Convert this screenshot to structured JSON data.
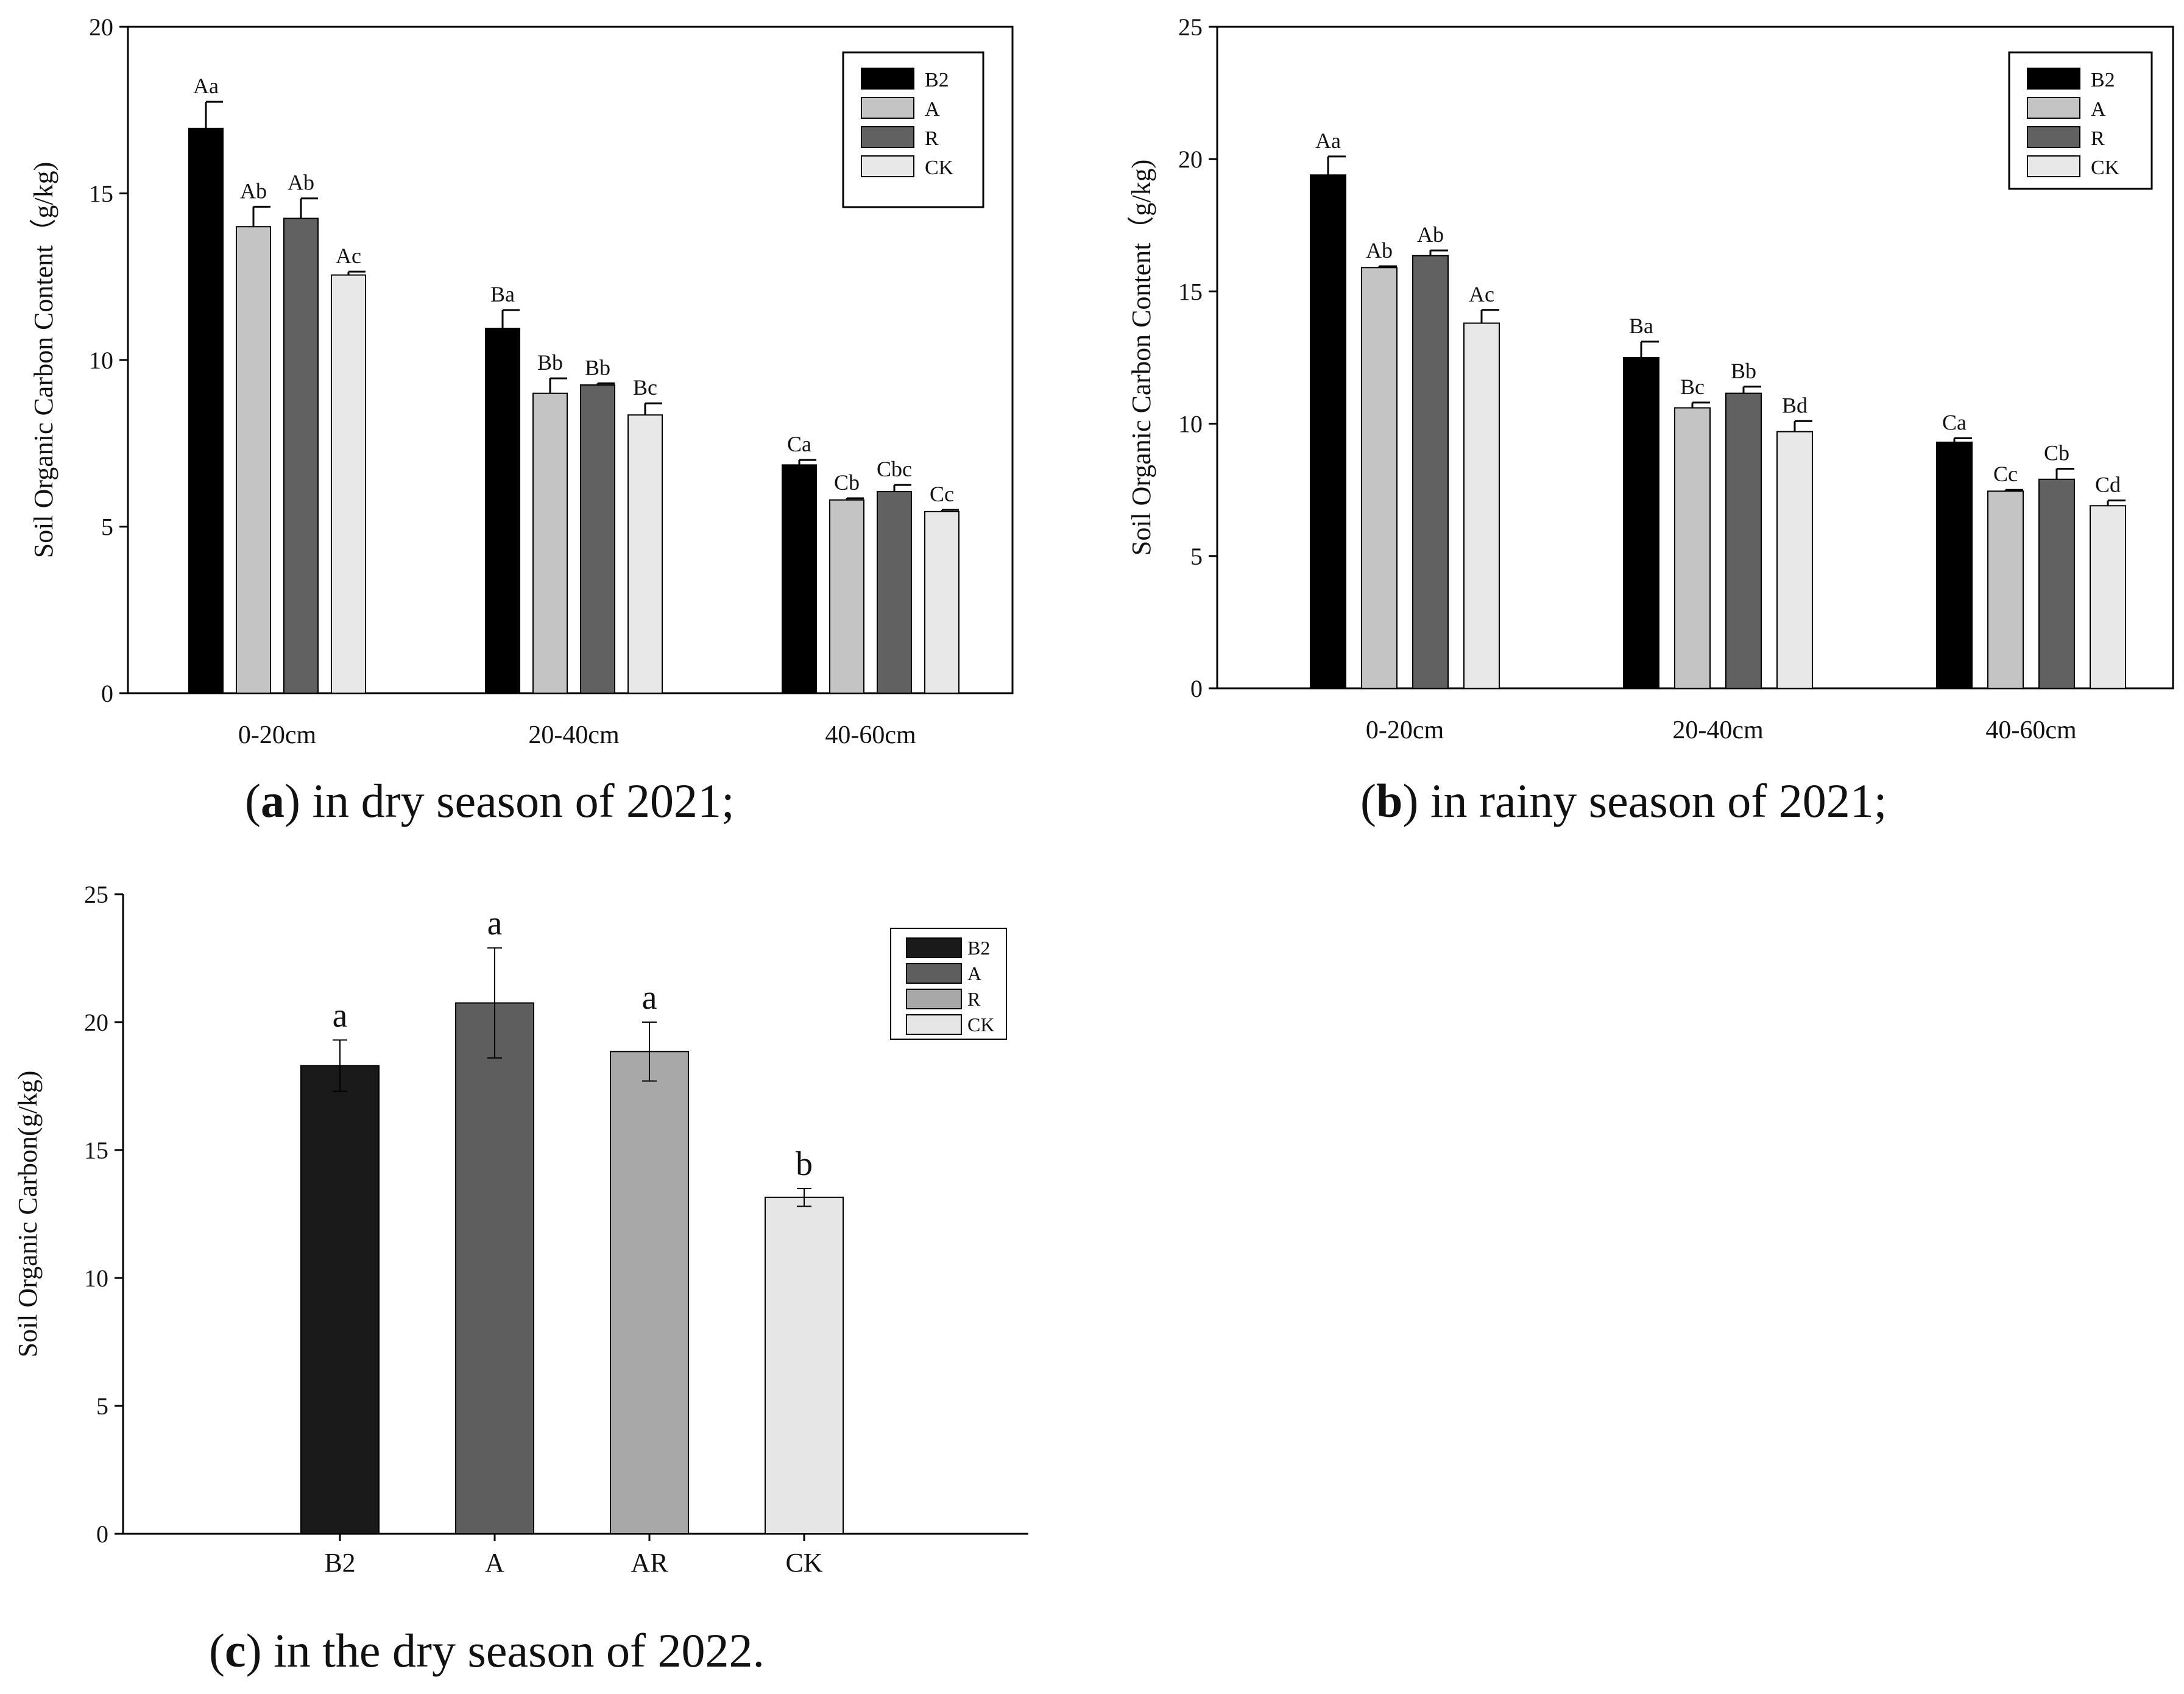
{
  "chart_data": [
    {
      "type": "bar",
      "title": "",
      "ylabel": "Soil Organic Carbon Content（g/kg)",
      "xlabel": "",
      "ylim": [
        0,
        20
      ],
      "yticks": [
        0,
        5,
        10,
        15,
        20
      ],
      "categories": [
        "0-20cm",
        "20-40cm",
        "40-60cm"
      ],
      "legend_position": "top-right",
      "series": [
        {
          "name": "B2",
          "color": "#000000",
          "values": [
            16.95,
            10.95,
            6.85
          ],
          "errors": [
            0.8,
            0.55,
            0.15
          ],
          "letters": [
            "Aa",
            "Ba",
            "Ca"
          ]
        },
        {
          "name": "A",
          "color": "#c4c4c4",
          "values": [
            14.0,
            9.0,
            5.8
          ],
          "errors": [
            0.6,
            0.45,
            0.05
          ],
          "letters": [
            "Ab",
            "Bb",
            "Cb"
          ]
        },
        {
          "name": "R",
          "color": "#616161",
          "values": [
            14.25,
            9.25,
            6.05
          ],
          "errors": [
            0.6,
            0.05,
            0.2
          ],
          "letters": [
            "Ab",
            "Bb",
            "Cbc"
          ]
        },
        {
          "name": "CK",
          "color": "#e8e8e8",
          "values": [
            12.55,
            8.35,
            5.45
          ],
          "errors": [
            0.1,
            0.35,
            0.05
          ],
          "letters": [
            "Ac",
            "Bc",
            "Cc"
          ]
        }
      ],
      "caption_letter": "a",
      "caption_text": " in dry season of 2021;"
    },
    {
      "type": "bar",
      "title": "",
      "ylabel": "Soil Organic Carbon Content（g/kg)",
      "xlabel": "",
      "ylim": [
        0,
        25
      ],
      "yticks": [
        0,
        5,
        10,
        15,
        20,
        25
      ],
      "categories": [
        "0-20cm",
        "20-40cm",
        "40-60cm"
      ],
      "legend_position": "top-right",
      "series": [
        {
          "name": "B2",
          "color": "#000000",
          "values": [
            19.4,
            12.5,
            9.3
          ],
          "errors": [
            0.7,
            0.6,
            0.15
          ],
          "letters": [
            "Aa",
            "Ba",
            "Ca"
          ]
        },
        {
          "name": "A",
          "color": "#c4c4c4",
          "values": [
            15.9,
            10.6,
            7.45
          ],
          "errors": [
            0.05,
            0.2,
            0.05
          ],
          "letters": [
            "Ab",
            "Bc",
            "Cc"
          ]
        },
        {
          "name": "R",
          "color": "#616161",
          "values": [
            16.35,
            11.15,
            7.9
          ],
          "errors": [
            0.2,
            0.25,
            0.4
          ],
          "letters": [
            "Ab",
            "Bb",
            "Cb"
          ]
        },
        {
          "name": "CK",
          "color": "#e8e8e8",
          "values": [
            13.8,
            9.7,
            6.9
          ],
          "errors": [
            0.5,
            0.4,
            0.2
          ],
          "letters": [
            "Ac",
            "Bd",
            "Cd"
          ]
        }
      ],
      "caption_letter": "b",
      "caption_text": " in rainy season of 2021;"
    },
    {
      "type": "bar",
      "title": "",
      "ylabel": "Soil Organic Carbon(g/kg)",
      "xlabel": "",
      "ylim": [
        0,
        25
      ],
      "yticks": [
        0,
        5,
        10,
        15,
        20,
        25
      ],
      "categories": [
        "B2",
        "A",
        "AR",
        "CK"
      ],
      "legend_position": "top-right",
      "legend": [
        {
          "name": "B2",
          "color": "#1a1a1a"
        },
        {
          "name": "A",
          "color": "#5e5e5e"
        },
        {
          "name": "R",
          "color": "#a8a8a8"
        },
        {
          "name": "CK",
          "color": "#e6e6e6"
        }
      ],
      "values": [
        18.3,
        20.75,
        18.85,
        13.15
      ],
      "errors": [
        1.0,
        2.15,
        1.15,
        0.35
      ],
      "colors": [
        "#1a1a1a",
        "#5e5e5e",
        "#a8a8a8",
        "#e6e6e6"
      ],
      "letters": [
        "a",
        "a",
        "a",
        "b"
      ],
      "caption_letter": "c",
      "caption_text": " in the dry season of 2022."
    }
  ]
}
